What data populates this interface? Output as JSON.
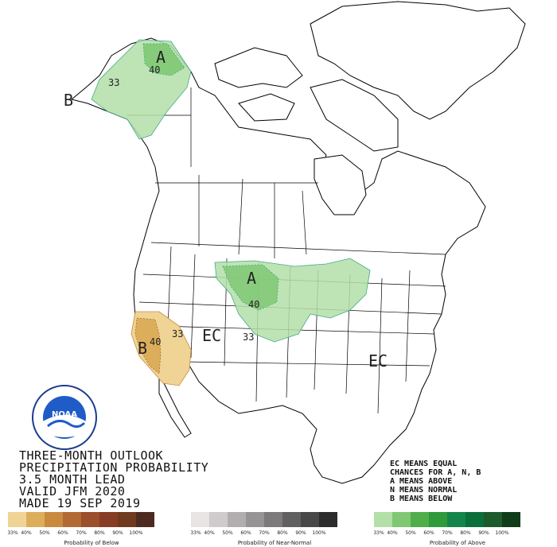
{
  "title_lines": [
    "THREE-MONTH OUTLOOK",
    "PRECIPITATION PROBABILITY",
    "3.5 MONTH LEAD",
    "VALID JFM 2020",
    "MADE 19 SEP 2019"
  ],
  "legend_text_lines": [
    "EC MEANS EQUAL",
    "CHANCES FOR A, N, B",
    "A MEANS ABOVE",
    "N MEANS NORMAL",
    "B MEANS BELOW"
  ],
  "map_labels": {
    "alaska_a": "A",
    "alaska_40": "40",
    "alaska_33": "33",
    "alaska_b": "B",
    "plains_a": "A",
    "plains_40": "40",
    "central_33": "33",
    "ec_west": "EC",
    "ec_east": "EC",
    "california_b": "B",
    "california_40": "40",
    "california_33": "33"
  },
  "colorbars": {
    "below": {
      "title": "Probability of Below",
      "ticks": [
        "33%",
        "40%",
        "50%",
        "60%",
        "70%",
        "80%",
        "90%",
        "100%"
      ],
      "colors": [
        "#f0d495",
        "#dcae5c",
        "#c98a3f",
        "#b26a32",
        "#9c4f2b",
        "#873d24",
        "#6f3a1e",
        "#4d2a20"
      ]
    },
    "near_normal": {
      "title": "Probability of Near-Normal",
      "ticks": [
        "33%",
        "40%",
        "50%",
        "60%",
        "70%",
        "80%",
        "90%",
        "100%"
      ],
      "colors": [
        "#e8e4e4",
        "#cfcacb",
        "#b2aeaf",
        "#979495",
        "#7c7a7b",
        "#616061",
        "#484848",
        "#2c2c2c"
      ]
    },
    "above": {
      "title": "Probability of Above",
      "ticks": [
        "33%",
        "40%",
        "50%",
        "60%",
        "70%",
        "80%",
        "90%",
        "100%"
      ],
      "colors": [
        "#b3dfa8",
        "#80c873",
        "#4fae4a",
        "#2e9a3a",
        "#14854a",
        "#0b6f3c",
        "#1d5a2c",
        "#0f3d1a"
      ]
    }
  },
  "logo_text": "NOAA",
  "colors": {
    "above_light": "#b3dfa8",
    "above_mid": "#80c873",
    "below_light": "#f0d495",
    "below_mid": "#dcae5c",
    "land_border": "#000000"
  }
}
